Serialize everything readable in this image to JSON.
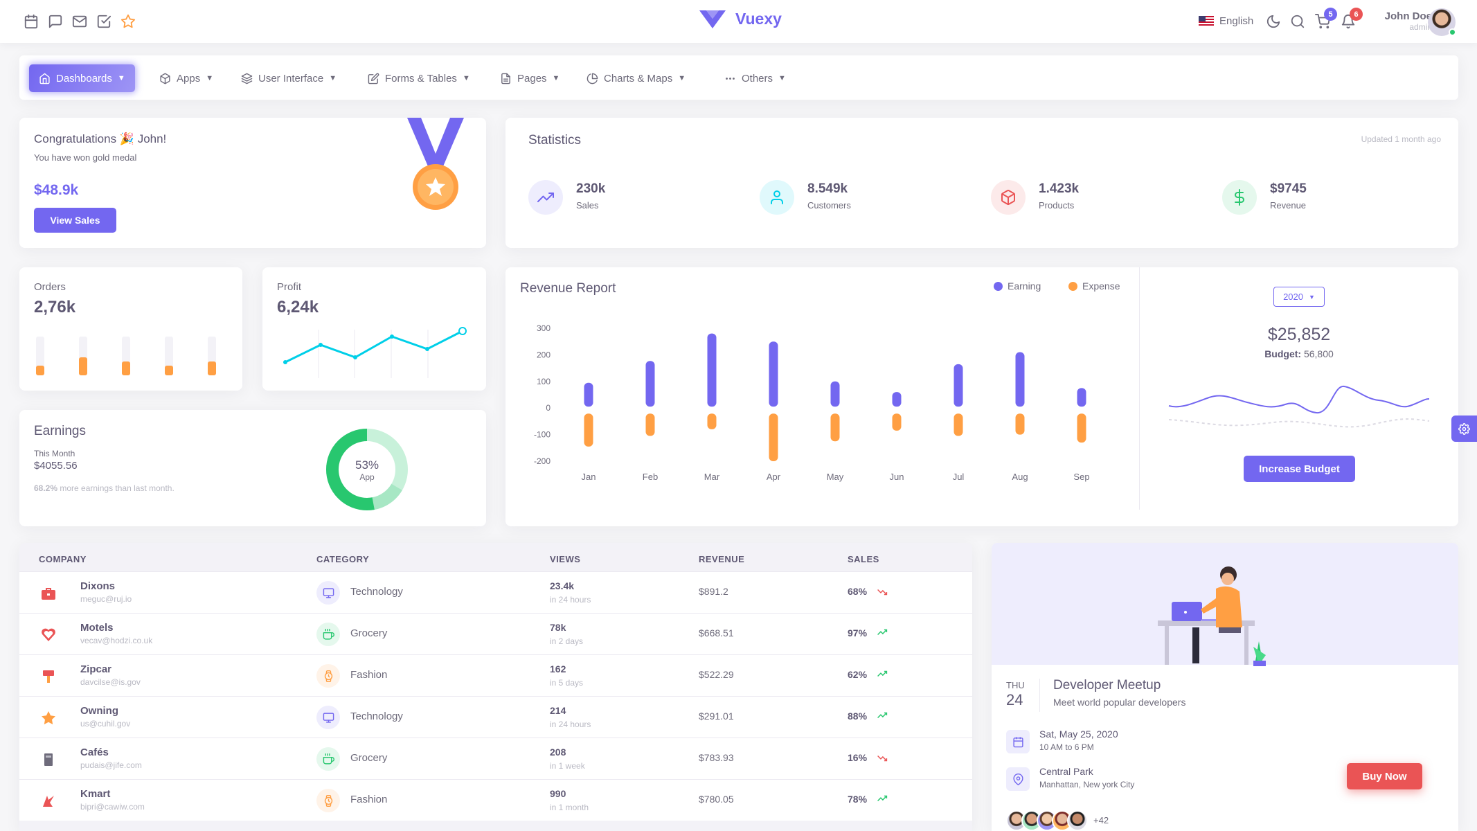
{
  "header": {
    "brand": "Vuexy",
    "language": "English",
    "cart_badge": "5",
    "notif_badge": "6",
    "user_name": "John Doe",
    "user_role": "admin",
    "left_icons": [
      "calendar-icon",
      "message-icon",
      "mail-icon",
      "check-square-icon",
      "star-icon"
    ]
  },
  "nav": {
    "items": [
      {
        "label": "Dashboards",
        "icon": "home-icon"
      },
      {
        "label": "Apps",
        "icon": "package-icon"
      },
      {
        "label": "User Interface",
        "icon": "layers-icon"
      },
      {
        "label": "Forms & Tables",
        "icon": "edit-icon"
      },
      {
        "label": "Pages",
        "icon": "file-icon"
      },
      {
        "label": "Charts & Maps",
        "icon": "pie-chart-icon"
      },
      {
        "label": "Others",
        "icon": "more-horizontal-icon"
      }
    ]
  },
  "congrats": {
    "title": "Congratulations 🎉 John!",
    "subtitle": "You have won gold medal",
    "amount": "$48.9k",
    "button": "View Sales"
  },
  "statistics": {
    "title": "Statistics",
    "updated": "Updated 1 month ago",
    "items": [
      {
        "value": "230k",
        "label": "Sales",
        "icon": "trending-up-icon"
      },
      {
        "value": "8.549k",
        "label": "Customers",
        "icon": "user-icon"
      },
      {
        "value": "1.423k",
        "label": "Products",
        "icon": "box-icon"
      },
      {
        "value": "$9745",
        "label": "Revenue",
        "icon": "dollar-sign-icon"
      }
    ]
  },
  "orders": {
    "title": "Orders",
    "value": "2,76k",
    "bars": [
      0.45,
      0.85,
      0.65,
      0.45,
      0.65
    ]
  },
  "profit": {
    "title": "Profit",
    "value": "6,24k"
  },
  "earnings": {
    "title": "Earnings",
    "period": "This Month",
    "amount": "$4055.56",
    "note_pct": "68.2%",
    "note": "more earnings than last month.",
    "donut_pct": "53%",
    "donut_label": "App"
  },
  "revenue_report": {
    "title": "Revenue Report",
    "legend_earning": "Earning",
    "legend_expense": "Expense",
    "year": "2020",
    "total": "$25,852",
    "budget_label": "Budget:",
    "budget_value": "56,800",
    "button": "Increase Budget"
  },
  "chart_data": {
    "type": "bar",
    "categories": [
      "Jan",
      "Feb",
      "Mar",
      "Apr",
      "May",
      "Jun",
      "Jul",
      "Aug",
      "Sep"
    ],
    "series": [
      {
        "name": "Earning",
        "values": [
          95,
          177,
          280,
          250,
          100,
          60,
          165,
          210,
          75
        ]
      },
      {
        "name": "Expense",
        "values": [
          -145,
          -105,
          -80,
          -200,
          -125,
          -85,
          -105,
          -100,
          -130
        ]
      }
    ],
    "yticks": [
      300,
      200,
      100,
      0,
      -100,
      -200
    ],
    "ylim": [
      -200,
      300
    ],
    "colors": {
      "Earning": "#7367f0",
      "Expense": "#ff9f43"
    }
  },
  "table": {
    "headers": [
      "COMPANY",
      "CATEGORY",
      "VIEWS",
      "REVENUE",
      "SALES"
    ],
    "rows": [
      {
        "company": "Dixons",
        "email": "meguc@ruj.io",
        "category": "Technology",
        "views": "23.4k",
        "views_sub": "in 24 hours",
        "revenue": "$891.2",
        "sales": "68%",
        "trend": "down"
      },
      {
        "company": "Motels",
        "email": "vecav@hodzi.co.uk",
        "category": "Grocery",
        "views": "78k",
        "views_sub": "in 2 days",
        "revenue": "$668.51",
        "sales": "97%",
        "trend": "up"
      },
      {
        "company": "Zipcar",
        "email": "davcilse@is.gov",
        "category": "Fashion",
        "views": "162",
        "views_sub": "in 5 days",
        "revenue": "$522.29",
        "sales": "62%",
        "trend": "up"
      },
      {
        "company": "Owning",
        "email": "us@cuhil.gov",
        "category": "Technology",
        "views": "214",
        "views_sub": "in 24 hours",
        "revenue": "$291.01",
        "sales": "88%",
        "trend": "up"
      },
      {
        "company": "Cafés",
        "email": "pudais@jife.com",
        "category": "Grocery",
        "views": "208",
        "views_sub": "in 1 week",
        "revenue": "$783.93",
        "sales": "16%",
        "trend": "down"
      },
      {
        "company": "Kmart",
        "email": "bipri@cawiw.com",
        "category": "Fashion",
        "views": "990",
        "views_sub": "in 1 month",
        "revenue": "$780.05",
        "sales": "78%",
        "trend": "up"
      }
    ]
  },
  "meetup": {
    "day": "THU",
    "date": "24",
    "title": "Developer Meetup",
    "subtitle": "Meet world popular developers",
    "when": "Sat, May 25, 2020",
    "time": "10 AM to 6 PM",
    "where": "Central Park",
    "address": "Manhattan, New york City",
    "more": "+42",
    "buy_button": "Buy Now"
  }
}
